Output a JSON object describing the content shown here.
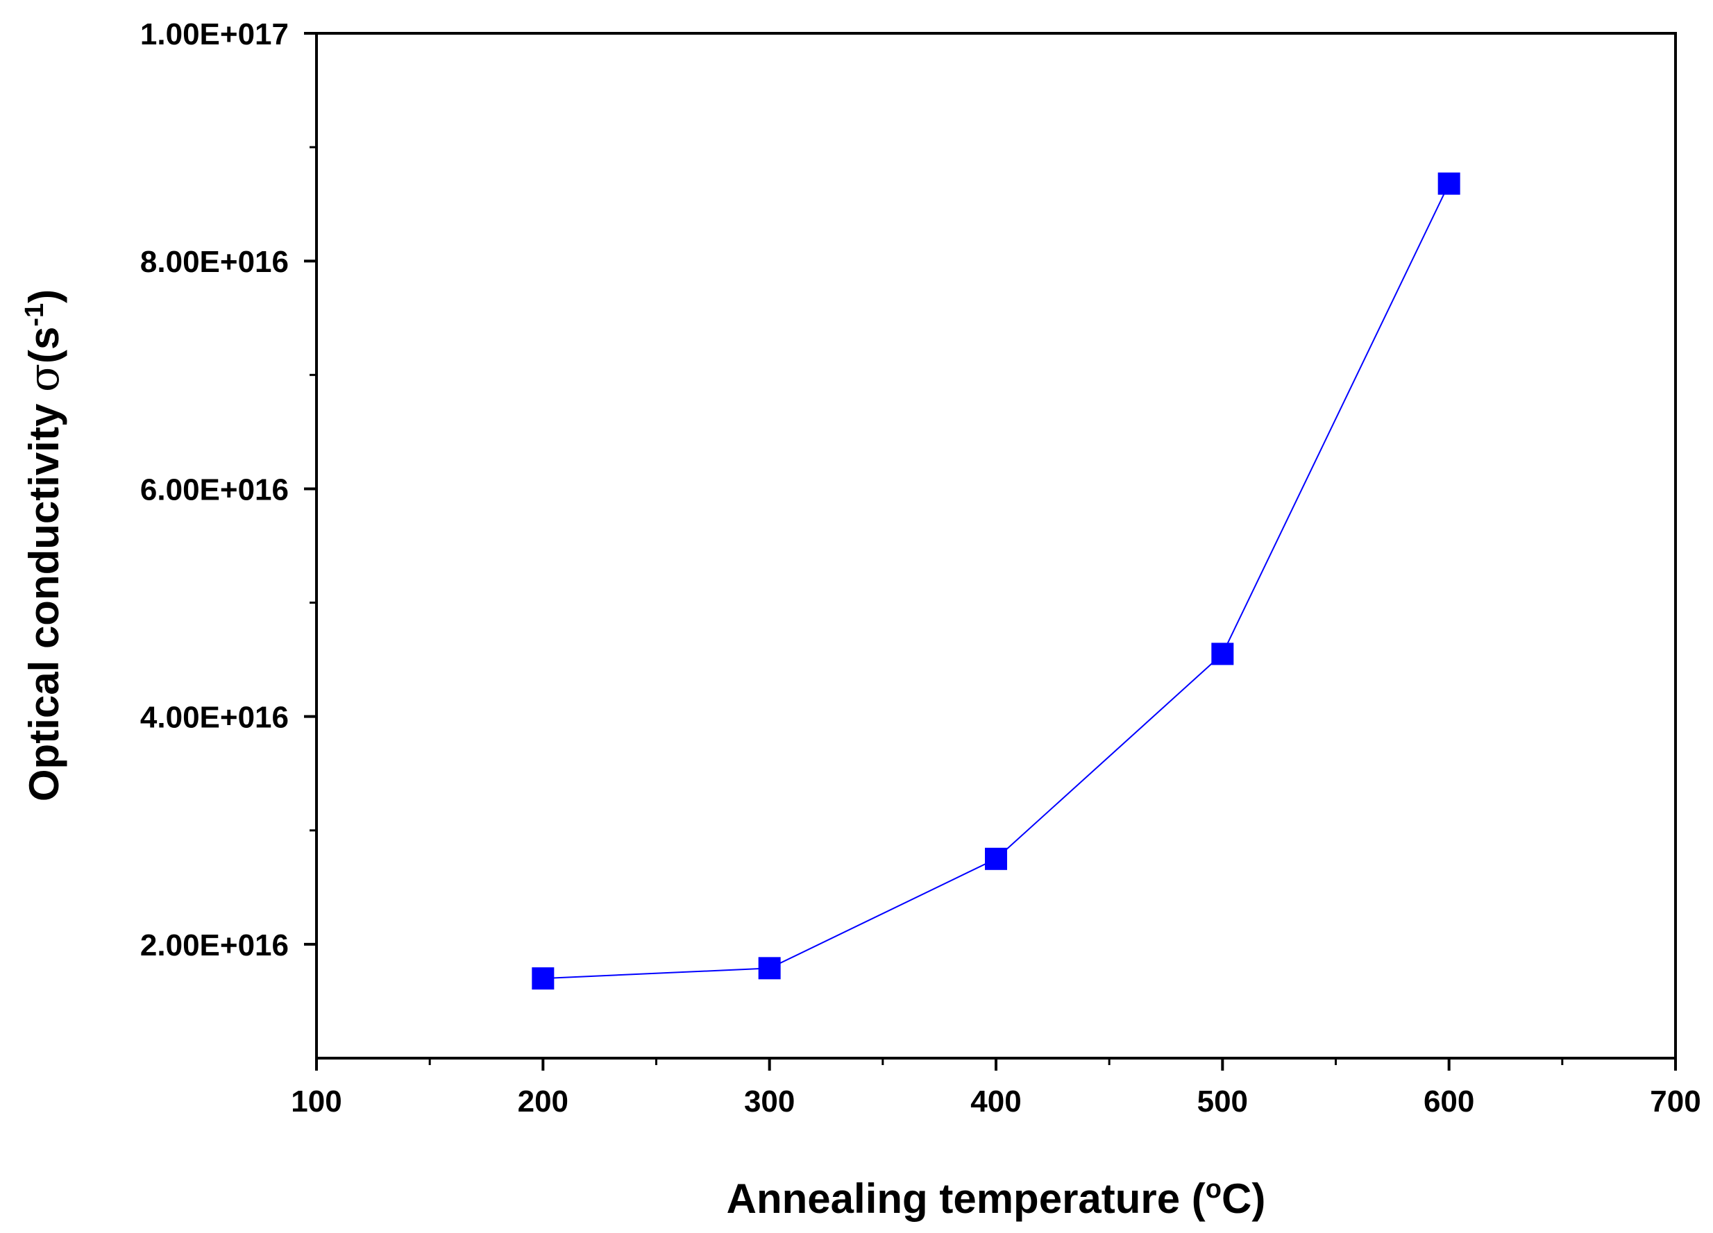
{
  "chart_data": {
    "type": "line",
    "title": "",
    "xlabel": {
      "main": "Annealing temperature (",
      "sup": "o",
      "unit": "C)"
    },
    "ylabel": {
      "main": "Optical conductivity ",
      "symbol": "σ",
      "open": "(s",
      "sup": "-1",
      "close": ")"
    },
    "xlim": [
      100,
      700
    ],
    "ylim": [
      10000000000000000,
      100000000000000000
    ],
    "x_ticks": [
      100,
      200,
      300,
      400,
      500,
      600,
      700
    ],
    "x_tick_labels": [
      "100",
      "200",
      "300",
      "400",
      "500",
      "600",
      "700"
    ],
    "y_ticks": [
      20000000000000000,
      40000000000000000,
      60000000000000000,
      80000000000000000,
      100000000000000000
    ],
    "y_tick_labels": [
      "2.00E+016",
      "4.00E+016",
      "6.00E+016",
      "8.00E+016",
      "1.00E+017"
    ],
    "grid": false,
    "series": [
      {
        "name": "Optical conductivity",
        "marker": "square",
        "color": "#0000ff",
        "x": [
          200,
          300,
          400,
          500,
          600
        ],
        "y": [
          17000000000000000,
          17900000000000000,
          27500000000000000,
          45500000000000000,
          86800000000000000
        ]
      }
    ]
  }
}
